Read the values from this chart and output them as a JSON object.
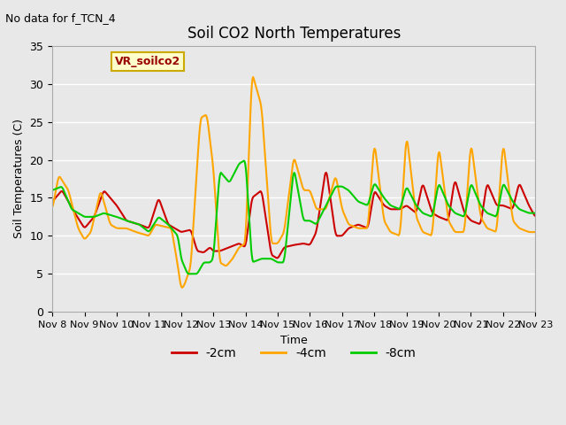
{
  "title": "Soil CO2 North Temperatures",
  "subtitle": "No data for f_TCN_4",
  "ylabel": "Soil Temperatures (C)",
  "xlabel": "Time",
  "ylim": [
    0,
    35
  ],
  "xlim": [
    0,
    15
  ],
  "background_color": "#e8e8e8",
  "plot_bg_color": "#e8e8e8",
  "grid_color": "white",
  "legend_label": "VR_soilco2",
  "legend_box_color": "#ffffcc",
  "legend_box_edge": "#ccaa00",
  "series": {
    "-2cm": {
      "color": "#cc0000",
      "lw": 1.5
    },
    "-4cm": {
      "color": "#ffa500",
      "lw": 1.5
    },
    "-8cm": {
      "color": "#00cc00",
      "lw": 1.5
    }
  },
  "xtick_labels": [
    "Nov 8",
    "Nov 9",
    "Nov 10",
    "Nov 11",
    "Nov 12",
    "Nov 13",
    "Nov 14",
    "Nov 15",
    "Nov 16",
    "Nov 17",
    "Nov 18",
    "Nov 19",
    "Nov 20",
    "Nov 21",
    "Nov 22",
    "Nov 23"
  ],
  "xtick_positions": [
    0,
    1,
    2,
    3,
    4,
    5,
    6,
    7,
    8,
    9,
    10,
    11,
    12,
    13,
    14,
    15
  ],
  "ytick_positions": [
    0,
    5,
    10,
    15,
    20,
    25,
    30,
    35
  ],
  "figsize": [
    6.4,
    4.8
  ],
  "dpi": 100
}
